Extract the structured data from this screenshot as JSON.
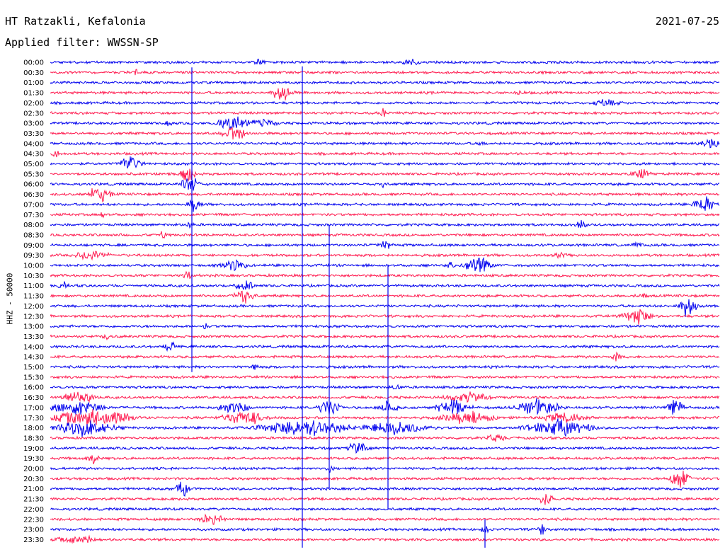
{
  "header": {
    "station": "HT Ratzakli, Kefalonia",
    "date": "2021-07-25",
    "filter": "Applied filter: WWSSN-SP"
  },
  "axis": {
    "channel_label": "HHZ - 50000"
  },
  "colors": {
    "trace_odd": "#0000ee",
    "trace_even": "#ff1a4f",
    "background": "#ffffff",
    "text": "#000000"
  },
  "traces": [
    {
      "label": "00:00",
      "color": "blue"
    },
    {
      "label": "00:30",
      "color": "red"
    },
    {
      "label": "01:00",
      "color": "blue"
    },
    {
      "label": "01:30",
      "color": "red"
    },
    {
      "label": "02:00",
      "color": "blue"
    },
    {
      "label": "02:30",
      "color": "red"
    },
    {
      "label": "03:00",
      "color": "blue"
    },
    {
      "label": "03:30",
      "color": "red"
    },
    {
      "label": "04:00",
      "color": "blue"
    },
    {
      "label": "04:30",
      "color": "red"
    },
    {
      "label": "05:00",
      "color": "blue"
    },
    {
      "label": "05:30",
      "color": "red"
    },
    {
      "label": "06:00",
      "color": "blue"
    },
    {
      "label": "06:30",
      "color": "red"
    },
    {
      "label": "07:00",
      "color": "blue"
    },
    {
      "label": "07:30",
      "color": "red"
    },
    {
      "label": "08:00",
      "color": "blue"
    },
    {
      "label": "08:30",
      "color": "red"
    },
    {
      "label": "09:00",
      "color": "blue"
    },
    {
      "label": "09:30",
      "color": "red"
    },
    {
      "label": "10:00",
      "color": "blue"
    },
    {
      "label": "10:30",
      "color": "red"
    },
    {
      "label": "11:00",
      "color": "blue"
    },
    {
      "label": "11:30",
      "color": "red"
    },
    {
      "label": "12:00",
      "color": "blue"
    },
    {
      "label": "12:30",
      "color": "red"
    },
    {
      "label": "13:00",
      "color": "blue"
    },
    {
      "label": "13:30",
      "color": "red"
    },
    {
      "label": "14:00",
      "color": "blue"
    },
    {
      "label": "14:30",
      "color": "red"
    },
    {
      "label": "15:00",
      "color": "blue"
    },
    {
      "label": "15:30",
      "color": "red"
    },
    {
      "label": "16:00",
      "color": "blue"
    },
    {
      "label": "16:30",
      "color": "red"
    },
    {
      "label": "17:00",
      "color": "blue"
    },
    {
      "label": "17:30",
      "color": "red"
    },
    {
      "label": "18:00",
      "color": "blue"
    },
    {
      "label": "18:30",
      "color": "red"
    },
    {
      "label": "19:00",
      "color": "blue"
    },
    {
      "label": "19:30",
      "color": "red"
    },
    {
      "label": "20:00",
      "color": "blue"
    },
    {
      "label": "20:30",
      "color": "red"
    },
    {
      "label": "21:00",
      "color": "blue"
    },
    {
      "label": "21:30",
      "color": "red"
    },
    {
      "label": "22:00",
      "color": "blue"
    },
    {
      "label": "22:30",
      "color": "red"
    },
    {
      "label": "23:00",
      "color": "blue"
    },
    {
      "label": "23:30",
      "color": "red"
    }
  ]
}
